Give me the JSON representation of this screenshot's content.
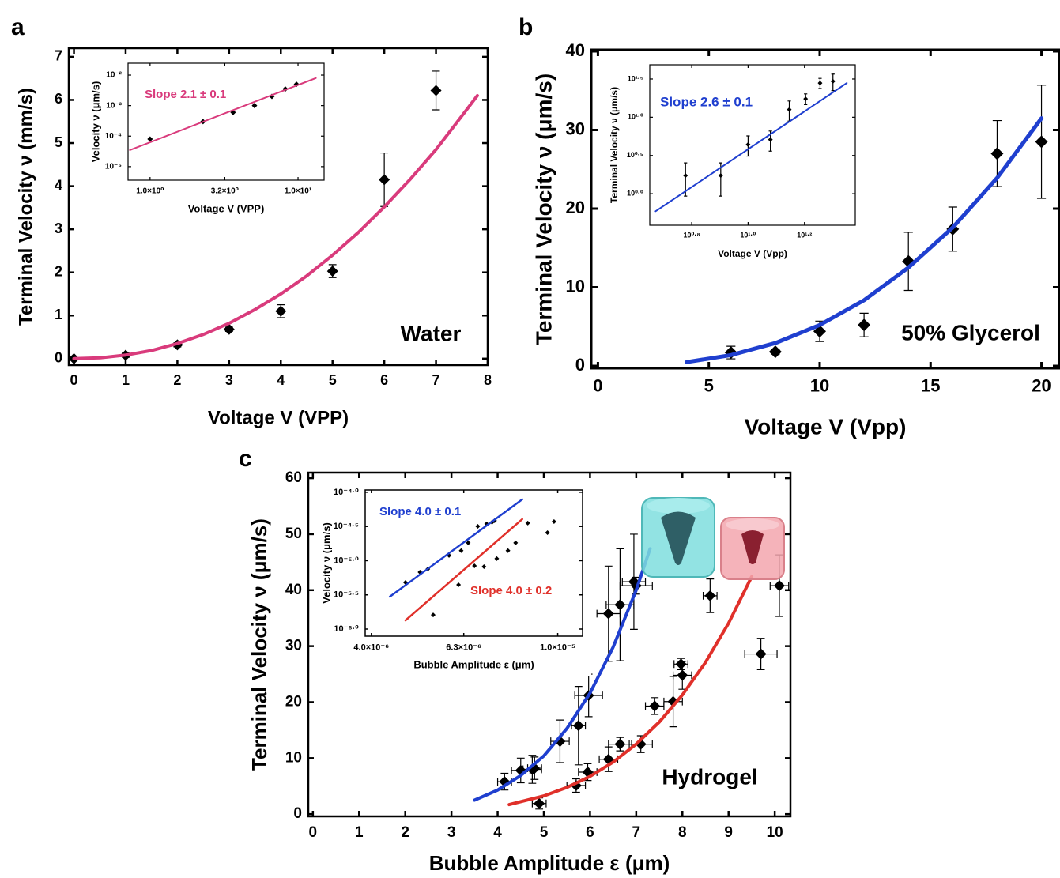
{
  "chart_data": [
    {
      "type": "scatter",
      "label": "a",
      "xlabel": "Voltage V (VPP)",
      "ylabel": "Terminal Velocity ν (mm/s)",
      "annotations": [
        {
          "text": "Water",
          "color": "#000000"
        }
      ],
      "xlim": [
        -0.1,
        8
      ],
      "ylim": [
        -0.15,
        7.2
      ],
      "xticks": [
        0,
        1,
        2,
        3,
        4,
        5,
        6,
        7,
        8
      ],
      "yticks": [
        0,
        1,
        2,
        3,
        4,
        5,
        6,
        7
      ],
      "series": [
        {
          "type": "scatter",
          "color": "#000000",
          "x": [
            0,
            1,
            2,
            3,
            4,
            5,
            6,
            7
          ],
          "values": [
            0,
            0.08,
            0.32,
            0.68,
            1.1,
            2.03,
            4.15,
            6.22
          ],
          "yerr": [
            0,
            0.05,
            0.05,
            0.05,
            0.15,
            0.15,
            0.62,
            0.45
          ]
        },
        {
          "type": "line",
          "color": "#d93b7c",
          "x": [
            0,
            0.5,
            1,
            1.5,
            2,
            2.5,
            3,
            3.5,
            4,
            4.5,
            5,
            5.5,
            6,
            6.5,
            7,
            7.5,
            7.8
          ],
          "values": [
            0,
            0.019,
            0.082,
            0.19,
            0.35,
            0.56,
            0.82,
            1.14,
            1.5,
            1.92,
            2.4,
            2.93,
            3.52,
            4.16,
            4.85,
            5.63,
            6.1
          ]
        }
      ]
    },
    {
      "type": "scatter",
      "xlabel": "Voltage V (VPP)",
      "ylabel": "Velocity ν (μm/s)",
      "xscale": "log",
      "yscale": "log",
      "annotations": [
        {
          "text": "Slope  2.1 ± 0.1",
          "color": "#d93b7c"
        }
      ],
      "xlim": [
        0.71,
        15
      ],
      "ylim": [
        3.6e-06,
        0.0245
      ],
      "xticks": [
        {
          "value": 1,
          "label": "1.0×10⁰"
        },
        {
          "value": 3.2,
          "label": "3.2×10⁰"
        },
        {
          "value": 10,
          "label": "1.0×10¹"
        }
      ],
      "yticks": [
        {
          "value": 1e-05,
          "label": "10⁻⁵"
        },
        {
          "value": 0.0001,
          "label": "10⁻⁴"
        },
        {
          "value": 0.001,
          "label": "10⁻³"
        },
        {
          "value": 0.01,
          "label": "10⁻²"
        }
      ],
      "series": [
        {
          "type": "scatter",
          "color": "#000000",
          "x": [
            1,
            2.28,
            3.64,
            5.08,
            6.66,
            8.2,
            9.76
          ],
          "values": [
            8e-05,
            0.0003,
            0.0006,
            0.001,
            0.002,
            0.0035,
            0.005
          ]
        },
        {
          "type": "line",
          "color": "#d93b7c",
          "x": [
            0.73,
            13.2
          ],
          "values": [
            3.5e-05,
            0.008
          ]
        }
      ]
    },
    {
      "type": "scatter",
      "label": "b",
      "xlabel": "Voltage V (Vpp)",
      "ylabel": "Terminal Velocity ν (μm/s)",
      "annotations": [
        {
          "text": "50% Glycerol",
          "color": "#000000"
        }
      ],
      "xlim": [
        -0.3,
        20.8
      ],
      "ylim": [
        -0.3,
        40.2
      ],
      "xticks": [
        0,
        5,
        10,
        15,
        20
      ],
      "yticks": [
        0,
        10,
        20,
        30,
        40
      ],
      "series": [
        {
          "type": "scatter",
          "color": "#000000",
          "x": [
            6,
            8,
            10,
            12,
            14,
            16,
            18,
            20
          ],
          "values": [
            1.7,
            1.8,
            4.4,
            5.2,
            13.3,
            17.4,
            27,
            28.5
          ],
          "yerr": [
            0.8,
            0.3,
            1.3,
            1.5,
            3.7,
            2.8,
            4.2,
            7.2
          ]
        },
        {
          "type": "line",
          "color": "#1f3fcf",
          "x": [
            4,
            6,
            8,
            10,
            12,
            14,
            16,
            18,
            20
          ],
          "values": [
            0.48,
            1.38,
            2.91,
            5.2,
            8.35,
            12.5,
            17.6,
            23.9,
            31.5
          ]
        }
      ]
    },
    {
      "type": "scatter",
      "xlabel": "Voltage V (Vpp)",
      "ylabel": "Terminal Velocity ν (μm/s)",
      "xscale": "log",
      "yscale": "log",
      "annotations": [
        {
          "text": "Slope  2.6 ± 0.1",
          "color": "#1f3fcf"
        }
      ],
      "xlim": [
        4.48,
        24
      ],
      "ylim": [
        0.387,
        48.5
      ],
      "xticks": [
        {
          "value": 6.31,
          "label": "10⁰·⁸"
        },
        {
          "value": 10,
          "label": "10¹·⁰"
        },
        {
          "value": 15.85,
          "label": "10¹·²"
        }
      ],
      "yticks": [
        {
          "value": 1,
          "label": "10⁰·⁰"
        },
        {
          "value": 3.16,
          "label": "10⁰·⁵"
        },
        {
          "value": 10,
          "label": "10¹·⁰"
        },
        {
          "value": 31.62,
          "label": "10¹·⁵"
        }
      ],
      "series": [
        {
          "type": "scatter",
          "color": "#000000",
          "x": [
            6,
            8,
            10,
            12,
            14,
            16,
            18,
            20
          ],
          "values": [
            1.73,
            1.73,
            4.4,
            5.1,
            12.6,
            17.4,
            28,
            29.5
          ],
          "yerr": [
            0.8,
            0.8,
            1.3,
            1.5,
            3.7,
            2.8,
            4.2,
            7.2
          ]
        },
        {
          "type": "line",
          "color": "#1f3fcf",
          "x": [
            4.7,
            22.4
          ],
          "values": [
            0.59,
            28
          ]
        }
      ]
    },
    {
      "type": "scatter",
      "label": "c",
      "xlabel": "Bubble Amplitude ε (μm)",
      "ylabel": "Terminal Velocity ν (μm/s)",
      "annotations": [
        {
          "text": "Hydrogel",
          "color": "#000000"
        }
      ],
      "xlim": [
        -0.1,
        10.34
      ],
      "ylim": [
        -0.4,
        61
      ],
      "xticks": [
        0,
        1,
        2,
        3,
        4,
        5,
        6,
        7,
        8,
        9,
        10
      ],
      "yticks": [
        0,
        10,
        20,
        30,
        40,
        50,
        60
      ],
      "series": [
        {
          "type": "scatter",
          "color": "#000000",
          "x": [
            4.15,
            4.5,
            4.75,
            4.8,
            5.35,
            5.75,
            5.97,
            6.4,
            6.65,
            6.95,
            7.0
          ],
          "values": [
            5.8,
            7.8,
            8.0,
            8.2,
            13.0,
            15.8,
            21.2,
            35.8,
            37.4,
            41.5,
            40.8
          ],
          "xerr": [
            0.15,
            0.2,
            0.2,
            0.15,
            0.2,
            0.15,
            0.3,
            0.25,
            0.3,
            0.25,
            0.35
          ],
          "yerr": [
            1.5,
            2.2,
            2.5,
            2.0,
            3.8,
            7.0,
            3.8,
            8.5,
            10,
            8.5,
            1.5
          ]
        },
        {
          "type": "scatter",
          "color": "#000000",
          "x": [
            4.9,
            5.7,
            5.95,
            6.4,
            6.65,
            7.1,
            7.4,
            7.8,
            7.97,
            8.0,
            8.6,
            9.7,
            10.1
          ],
          "values": [
            1.9,
            5.1,
            7.5,
            9.8,
            12.5,
            12.5,
            19.3,
            20.1,
            26.8,
            24.8,
            39.0,
            28.6,
            40.8
          ],
          "xerr": [
            0.15,
            0.2,
            0.2,
            0.2,
            0.25,
            0.25,
            0.2,
            0.2,
            0.15,
            0.2,
            0.15,
            0.35,
            0.2
          ],
          "yerr": [
            1.0,
            1.2,
            1.5,
            2.2,
            1.2,
            1.5,
            1.5,
            4.5,
            1.0,
            2.5,
            3.0,
            2.8,
            5.5
          ]
        },
        {
          "type": "line",
          "color": "#1f3fcf",
          "x": [
            3.5,
            4,
            4.5,
            5,
            5.5,
            6,
            6.5,
            7,
            7.3
          ],
          "values": [
            2.5,
            4.3,
            6.9,
            10.4,
            15.3,
            21.6,
            29.8,
            40,
            47.4
          ]
        },
        {
          "type": "line",
          "color": "#e0302a",
          "x": [
            4.25,
            5,
            5.5,
            6,
            6.5,
            7,
            7.5,
            8,
            8.5,
            9,
            9.5
          ],
          "values": [
            1.7,
            3.25,
            4.76,
            6.74,
            9.28,
            12.5,
            16.45,
            21.3,
            27.1,
            34.1,
            42.4
          ]
        }
      ]
    },
    {
      "type": "scatter",
      "xlabel": "Bubble Amplitude ε (μm)",
      "ylabel": "Velocity ν (μm/s)",
      "xscale": "log",
      "yscale": "log",
      "annotations": [
        {
          "text": "Slope 4.0 ± 0.1",
          "color": "#1f3fcf"
        },
        {
          "text": "Slope 4.0 ± 0.2",
          "color": "#e0302a"
        }
      ],
      "xlim": [
        3.88e-06,
        1.13e-05
      ],
      "ylim": [
        7.87e-07,
        0.000108
      ],
      "xticks": [
        {
          "value": 4e-06,
          "label": "4.0×10⁻⁶"
        },
        {
          "value": 6.3e-06,
          "label": "6.3×10⁻⁶"
        },
        {
          "value": 1e-05,
          "label": "1.0×10⁻⁵"
        }
      ],
      "yticks": [
        {
          "value": 1e-06,
          "label": "10⁻⁶·⁰"
        },
        {
          "value": 3.16e-06,
          "label": "10⁻⁵·⁵"
        },
        {
          "value": 1e-05,
          "label": "10⁻⁵·⁰"
        },
        {
          "value": 3.16e-05,
          "label": "10⁻⁴·⁵"
        },
        {
          "value": 0.0001,
          "label": "10⁻⁴·⁰"
        }
      ],
      "series": [
        {
          "type": "scatter",
          "color": "#000000",
          "x": [
            4.73e-06,
            5.08e-06,
            5.28e-06,
            5.86e-06,
            6.22e-06,
            6.44e-06,
            6.75e-06,
            7.05e-06,
            7.24e-06,
            7.33e-06
          ],
          "values": [
            4.81e-06,
            6.79e-06,
            7.56e-06,
            1.19e-05,
            1.4e-05,
            1.82e-05,
            3.18e-05,
            3.45e-05,
            3.64e-05,
            3.84e-05
          ]
        },
        {
          "type": "scatter",
          "color": "#000000",
          "x": [
            5.42e-06,
            6.14e-06,
            6.64e-06,
            6.96e-06,
            7.41e-06,
            7.83e-06,
            8.13e-06,
            8.63e-06,
            9.51e-06,
            9.82e-06
          ],
          "values": [
            1.61e-06,
            4.44e-06,
            8.41e-06,
            8.19e-06,
            1.07e-05,
            1.4e-05,
            1.82e-05,
            3.54e-05,
            2.57e-05,
            3.73e-05
          ]
        },
        {
          "type": "line",
          "color": "#1f3fcf",
          "x": [
            4.38e-06,
            8.4e-06
          ],
          "values": [
            2.98e-06,
            7.87e-05
          ]
        },
        {
          "type": "line",
          "color": "#e0302a",
          "x": [
            4.73e-06,
            8.4e-06
          ],
          "values": [
            1.34e-06,
            4.05e-05
          ]
        }
      ]
    }
  ]
}
